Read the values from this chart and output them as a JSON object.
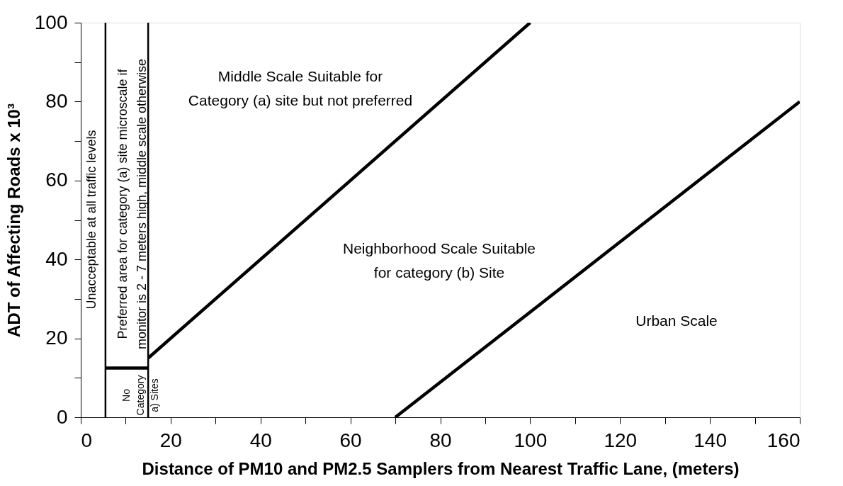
{
  "chart_data": {
    "type": "line",
    "xlabel": "Distance of PM10 and PM2.5 Samplers from Nearest Traffic Lane, (meters)",
    "ylabel": "ADT of Affecting Roads x 10³",
    "xlim": [
      0,
      160
    ],
    "ylim": [
      0,
      100
    ],
    "xticks": [
      0,
      {
        "value": 10,
        "label": null
      },
      20,
      {
        "value": 30,
        "label": null
      },
      40,
      {
        "value": 50,
        "label": null
      },
      60,
      {
        "value": 70,
        "label": null
      },
      80,
      {
        "value": 90,
        "label": null
      },
      100,
      {
        "value": 110,
        "label": null
      },
      120,
      {
        "value": 130,
        "label": null
      },
      140,
      {
        "value": 150,
        "label": null
      },
      160
    ],
    "yticks": [
      0,
      {
        "value": 10,
        "label": null
      },
      20,
      {
        "value": 30,
        "label": null
      },
      40,
      {
        "value": 50,
        "label": null
      },
      60,
      {
        "value": 70,
        "label": null
      },
      80,
      {
        "value": 90,
        "label": null
      },
      100
    ],
    "grid": false,
    "marker": "none",
    "line_style": "solid",
    "series": [
      {
        "color": "#000000",
        "x": [
          5.5,
          15
        ],
        "values": [
          12.5,
          12.5
        ]
      },
      {
        "color": "#000000",
        "x": [
          15,
          100
        ],
        "values": [
          15,
          100
        ]
      },
      {
        "color": "#000000",
        "x": [
          70,
          160
        ],
        "values": [
          0,
          80
        ]
      }
    ],
    "ref_lines": [
      {
        "axis": "x",
        "value": 5.5,
        "color": "#000000"
      },
      {
        "axis": "x",
        "value": 15,
        "color": "#000000"
      }
    ],
    "annotations": [
      "Middle Scale Suitable for\nCategory (a) site but not preferred",
      "Neighborhood Scale Suitable\nfor category (b) Site",
      "Urban Scale",
      "Unacceptable at all traffic levels",
      "Preferred area for category (a) site microscale if\nmonitor is 2 - 7 meters high, middle scale otherwise",
      "No\nCategory\na) Sites"
    ]
  }
}
